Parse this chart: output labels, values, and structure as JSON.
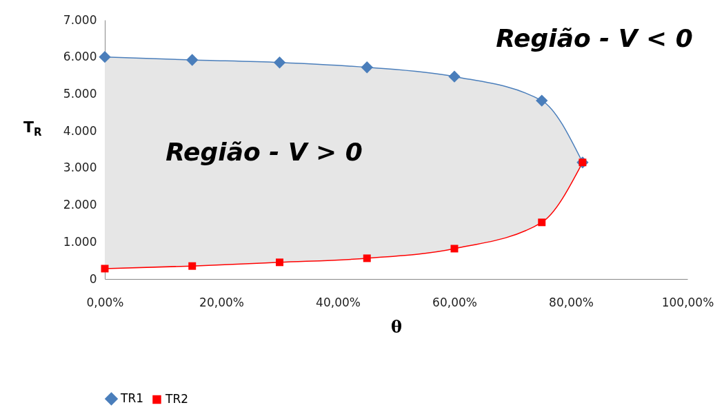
{
  "chart_data": {
    "type": "line",
    "xlabel": "θ",
    "ylabel": "T$_{R}$",
    "annotations": [
      "Região - V > 0",
      "Região - V < 0"
    ],
    "x": [
      0,
      15,
      30,
      45,
      60,
      75,
      82
    ],
    "series": [
      {
        "name": "TR1",
        "color": "#4a7ebb",
        "marker": "diamond",
        "values": [
          6000,
          5920,
          5850,
          5720,
          5470,
          4820,
          3150
        ],
        "lower": [
          280,
          350,
          450,
          560,
          820,
          1530,
          3150
        ],
        "upper": [
          6000,
          5920,
          5850,
          5720,
          5470,
          4820,
          3150
        ]
      },
      {
        "name": "TR2",
        "color": "#ff0000",
        "marker": "square",
        "values": [
          280,
          350,
          450,
          560,
          820,
          1530,
          3150
        ]
      }
    ],
    "xlim": [
      0,
      100
    ],
    "xticks": [
      {
        "value": 0,
        "label": "0,00%"
      },
      {
        "value": 20,
        "label": "20,00%"
      },
      {
        "value": 40,
        "label": "40,00%"
      },
      {
        "value": 60,
        "label": "60,00%"
      },
      {
        "value": 80,
        "label": "80,00%"
      },
      {
        "value": 100,
        "label": "100,00%"
      }
    ],
    "ylim": [
      0,
      7000
    ],
    "yticks": [
      0,
      {
        "value": 1000,
        "label": "1.000"
      },
      {
        "value": 2000,
        "label": "2.000"
      },
      {
        "value": 3000,
        "label": "3.000"
      },
      {
        "value": 4000,
        "label": "4.000"
      },
      {
        "value": 5000,
        "label": "5.000"
      },
      {
        "value": 6000,
        "label": "6.000"
      },
      {
        "value": 7000,
        "label": "7.000"
      }
    ],
    "grid": false,
    "legend": "bottom"
  }
}
